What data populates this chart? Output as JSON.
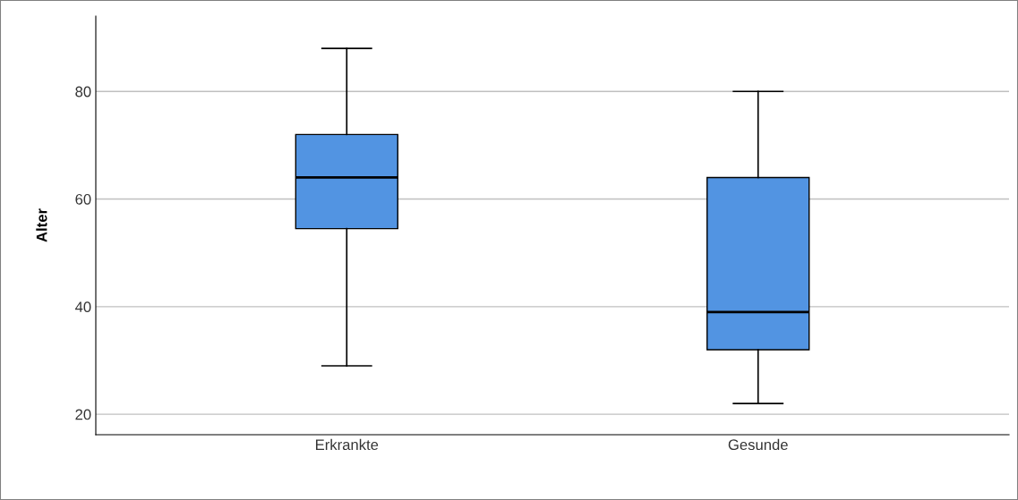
{
  "chart_data": {
    "type": "box",
    "ylabel": "Alter",
    "categories": [
      "Erkrankte",
      "Gesunde"
    ],
    "boxes": [
      {
        "low": 29,
        "q1": 54.5,
        "median": 64,
        "q3": 72,
        "high": 88
      },
      {
        "low": 22,
        "q1": 32,
        "median": 39,
        "q3": 64,
        "high": 80
      }
    ],
    "color": "#5294e2",
    "ylim": [
      16.2,
      94
    ],
    "yticks": [
      20,
      40,
      60,
      80
    ],
    "grid": "y"
  }
}
